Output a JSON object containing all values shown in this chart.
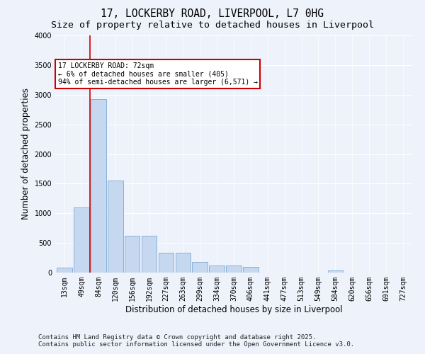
{
  "title_line1": "17, LOCKERBY ROAD, LIVERPOOL, L7 0HG",
  "title_line2": "Size of property relative to detached houses in Liverpool",
  "xlabel": "Distribution of detached houses by size in Liverpool",
  "ylabel": "Number of detached properties",
  "categories": [
    "13sqm",
    "49sqm",
    "84sqm",
    "120sqm",
    "156sqm",
    "192sqm",
    "227sqm",
    "263sqm",
    "299sqm",
    "334sqm",
    "370sqm",
    "406sqm",
    "441sqm",
    "477sqm",
    "513sqm",
    "549sqm",
    "584sqm",
    "620sqm",
    "656sqm",
    "691sqm",
    "727sqm"
  ],
  "values": [
    80,
    1100,
    2920,
    1550,
    620,
    620,
    330,
    330,
    185,
    120,
    120,
    95,
    0,
    0,
    0,
    0,
    35,
    0,
    0,
    0,
    0
  ],
  "bar_color": "#c5d8f0",
  "bar_edge_color": "#7aaad4",
  "vline_x": 1.5,
  "vline_color": "#cc0000",
  "annotation_text": "17 LOCKERBY ROAD: 72sqm\n← 6% of detached houses are smaller (405)\n94% of semi-detached houses are larger (6,571) →",
  "annotation_box_color": "#cc0000",
  "ylim": [
    0,
    4000
  ],
  "yticks": [
    0,
    500,
    1000,
    1500,
    2000,
    2500,
    3000,
    3500,
    4000
  ],
  "background_color": "#eef2fb",
  "grid_color": "#ffffff",
  "footer_line1": "Contains HM Land Registry data © Crown copyright and database right 2025.",
  "footer_line2": "Contains public sector information licensed under the Open Government Licence v3.0.",
  "title_fontsize": 10.5,
  "subtitle_fontsize": 9.5,
  "axis_label_fontsize": 8.5,
  "tick_fontsize": 7,
  "footer_fontsize": 6.5
}
